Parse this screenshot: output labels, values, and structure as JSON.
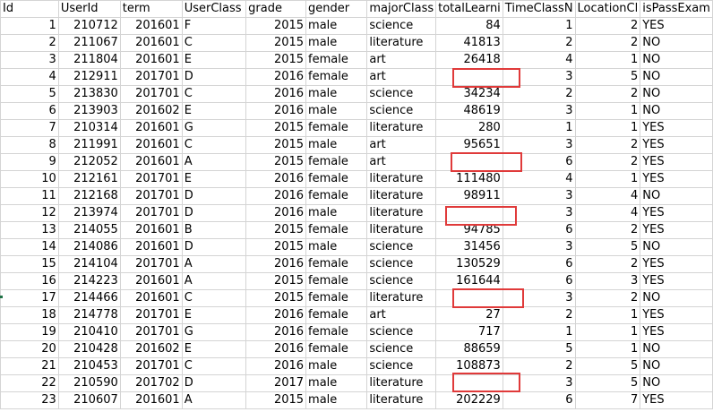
{
  "columns": [
    "Id",
    "UserId",
    "term",
    "UserClass",
    "grade",
    "gender",
    "majorClass",
    "totalLearni",
    "TimeClassN",
    "LocationCl",
    "isPassExam"
  ],
  "rows": [
    [
      "1",
      "210712",
      "201601",
      "F",
      "2015",
      "male",
      "science",
      "84",
      "1",
      "2",
      "YES"
    ],
    [
      "2",
      "211067",
      "201601",
      "C",
      "2015",
      "male",
      "literature",
      "41813",
      "2",
      "2",
      "NO"
    ],
    [
      "3",
      "211804",
      "201601",
      "E",
      "2015",
      "female",
      "art",
      "26418",
      "4",
      "1",
      "NO"
    ],
    [
      "4",
      "212911",
      "201701",
      "D",
      "2016",
      "female",
      "art",
      "",
      "3",
      "5",
      "NO"
    ],
    [
      "5",
      "213830",
      "201701",
      "C",
      "2016",
      "male",
      "science",
      "34234",
      "2",
      "2",
      "NO"
    ],
    [
      "6",
      "213903",
      "201602",
      "E",
      "2016",
      "male",
      "science",
      "48619",
      "3",
      "1",
      "NO"
    ],
    [
      "7",
      "210314",
      "201601",
      "G",
      "2015",
      "female",
      "literature",
      "280",
      "1",
      "1",
      "YES"
    ],
    [
      "8",
      "211991",
      "201601",
      "C",
      "2015",
      "male",
      "art",
      "95651",
      "3",
      "2",
      "YES"
    ],
    [
      "9",
      "212052",
      "201601",
      "A",
      "2015",
      "female",
      "art",
      "",
      "6",
      "2",
      "YES"
    ],
    [
      "10",
      "212161",
      "201701",
      "E",
      "2016",
      "female",
      "literature",
      "111480",
      "4",
      "1",
      "YES"
    ],
    [
      "11",
      "212168",
      "201701",
      "D",
      "2016",
      "female",
      "literature",
      "98911",
      "3",
      "4",
      "NO"
    ],
    [
      "12",
      "213974",
      "201701",
      "D",
      "2016",
      "male",
      "literature",
      "",
      "3",
      "4",
      "YES"
    ],
    [
      "13",
      "214055",
      "201601",
      "B",
      "2015",
      "female",
      "literature",
      "94785",
      "6",
      "2",
      "YES"
    ],
    [
      "14",
      "214086",
      "201601",
      "D",
      "2015",
      "male",
      "science",
      "31456",
      "3",
      "5",
      "NO"
    ],
    [
      "15",
      "214104",
      "201701",
      "A",
      "2016",
      "female",
      "science",
      "130529",
      "6",
      "2",
      "YES"
    ],
    [
      "16",
      "214223",
      "201601",
      "A",
      "2015",
      "female",
      "science",
      "161644",
      "6",
      "3",
      "YES"
    ],
    [
      "17",
      "214466",
      "201601",
      "C",
      "2015",
      "female",
      "literature",
      "",
      "3",
      "2",
      "NO"
    ],
    [
      "18",
      "214778",
      "201701",
      "E",
      "2016",
      "female",
      "art",
      "27",
      "2",
      "1",
      "YES"
    ],
    [
      "19",
      "210410",
      "201701",
      "G",
      "2016",
      "female",
      "science",
      "717",
      "1",
      "1",
      "YES"
    ],
    [
      "20",
      "210428",
      "201602",
      "E",
      "2016",
      "female",
      "science",
      "88659",
      "5",
      "1",
      "NO"
    ],
    [
      "21",
      "210453",
      "201701",
      "C",
      "2016",
      "male",
      "science",
      "108873",
      "2",
      "5",
      "NO"
    ],
    [
      "22",
      "210590",
      "201702",
      "D",
      "2017",
      "male",
      "literature",
      "",
      "3",
      "5",
      "NO"
    ],
    [
      "23",
      "210607",
      "201601",
      "A",
      "2015",
      "male",
      "literature",
      "202229",
      "6",
      "7",
      "YES"
    ]
  ],
  "colors": {
    "highlight_border": "#e03a3a",
    "grid": "#d4d4d4"
  }
}
